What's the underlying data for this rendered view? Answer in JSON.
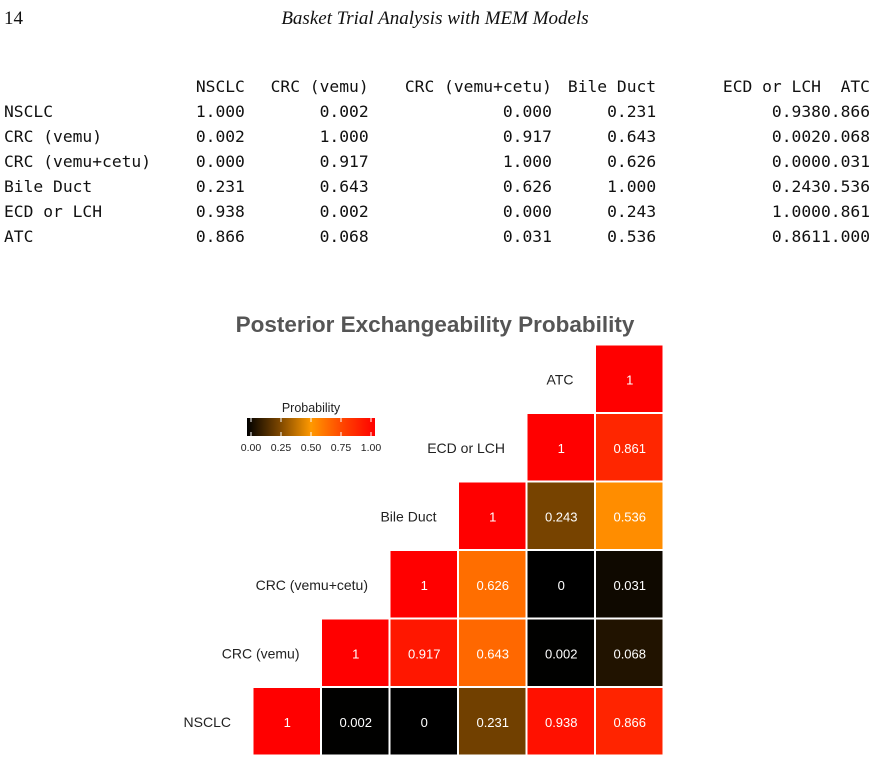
{
  "header": {
    "page_number": "14",
    "running_title": "Basket Trial Analysis with MEM Models"
  },
  "table": {
    "columns": [
      "NSCLC",
      "CRC (vemu)",
      "CRC (vemu+cetu)",
      "Bile Duct",
      "ECD or LCH",
      "ATC"
    ],
    "rows": [
      {
        "label": "NSCLC",
        "values": [
          "1.000",
          "0.002",
          "0.000",
          "0.231",
          "0.938",
          "0.866"
        ]
      },
      {
        "label": "CRC (vemu)",
        "values": [
          "0.002",
          "1.000",
          "0.917",
          "0.643",
          "0.002",
          "0.068"
        ]
      },
      {
        "label": "CRC (vemu+cetu)",
        "values": [
          "0.000",
          "0.917",
          "1.000",
          "0.626",
          "0.000",
          "0.031"
        ]
      },
      {
        "label": "Bile Duct",
        "values": [
          "0.231",
          "0.643",
          "0.626",
          "1.000",
          "0.243",
          "0.536"
        ]
      },
      {
        "label": "ECD or LCH",
        "values": [
          "0.938",
          "0.002",
          "0.000",
          "0.243",
          "1.000",
          "0.861"
        ]
      },
      {
        "label": "ATC",
        "values": [
          "0.866",
          "0.068",
          "0.031",
          "0.536",
          "0.861",
          "1.000"
        ]
      }
    ]
  },
  "chart_data": {
    "type": "heatmap",
    "title": "Posterior Exchangeability Probability",
    "categories": [
      "NSCLC",
      "CRC (vemu)",
      "CRC (vemu+cetu)",
      "Bile Duct",
      "ECD or LCH",
      "ATC"
    ],
    "cells": [
      {
        "row": "NSCLC",
        "col": "NSCLC",
        "value": 1,
        "label": "1"
      },
      {
        "row": "NSCLC",
        "col": "CRC (vemu)",
        "value": 0.002,
        "label": "0.002"
      },
      {
        "row": "NSCLC",
        "col": "CRC (vemu+cetu)",
        "value": 0,
        "label": "0"
      },
      {
        "row": "NSCLC",
        "col": "Bile Duct",
        "value": 0.231,
        "label": "0.231"
      },
      {
        "row": "NSCLC",
        "col": "ECD or LCH",
        "value": 0.938,
        "label": "0.938"
      },
      {
        "row": "NSCLC",
        "col": "ATC",
        "value": 0.866,
        "label": "0.866"
      },
      {
        "row": "CRC (vemu)",
        "col": "CRC (vemu)",
        "value": 1,
        "label": "1"
      },
      {
        "row": "CRC (vemu)",
        "col": "CRC (vemu+cetu)",
        "value": 0.917,
        "label": "0.917"
      },
      {
        "row": "CRC (vemu)",
        "col": "Bile Duct",
        "value": 0.643,
        "label": "0.643"
      },
      {
        "row": "CRC (vemu)",
        "col": "ECD or LCH",
        "value": 0.002,
        "label": "0.002"
      },
      {
        "row": "CRC (vemu)",
        "col": "ATC",
        "value": 0.068,
        "label": "0.068"
      },
      {
        "row": "CRC (vemu+cetu)",
        "col": "CRC (vemu+cetu)",
        "value": 1,
        "label": "1"
      },
      {
        "row": "CRC (vemu+cetu)",
        "col": "Bile Duct",
        "value": 0.626,
        "label": "0.626"
      },
      {
        "row": "CRC (vemu+cetu)",
        "col": "ECD or LCH",
        "value": 0,
        "label": "0"
      },
      {
        "row": "CRC (vemu+cetu)",
        "col": "ATC",
        "value": 0.031,
        "label": "0.031"
      },
      {
        "row": "Bile Duct",
        "col": "Bile Duct",
        "value": 1,
        "label": "1"
      },
      {
        "row": "Bile Duct",
        "col": "ECD or LCH",
        "value": 0.243,
        "label": "0.243"
      },
      {
        "row": "Bile Duct",
        "col": "ATC",
        "value": 0.536,
        "label": "0.536"
      },
      {
        "row": "ECD or LCH",
        "col": "ECD or LCH",
        "value": 1,
        "label": "1"
      },
      {
        "row": "ECD or LCH",
        "col": "ATC",
        "value": 0.861,
        "label": "0.861"
      },
      {
        "row": "ATC",
        "col": "ATC",
        "value": 1,
        "label": "1"
      }
    ],
    "legend": {
      "title": "Probability",
      "ticks": [
        "0.00",
        "0.25",
        "0.50",
        "0.75",
        "1.00"
      ],
      "placement": "top-left"
    },
    "color_scale": [
      "#000000",
      "#7a4500",
      "#ff9900",
      "#ff4400",
      "#ff0000"
    ]
  }
}
